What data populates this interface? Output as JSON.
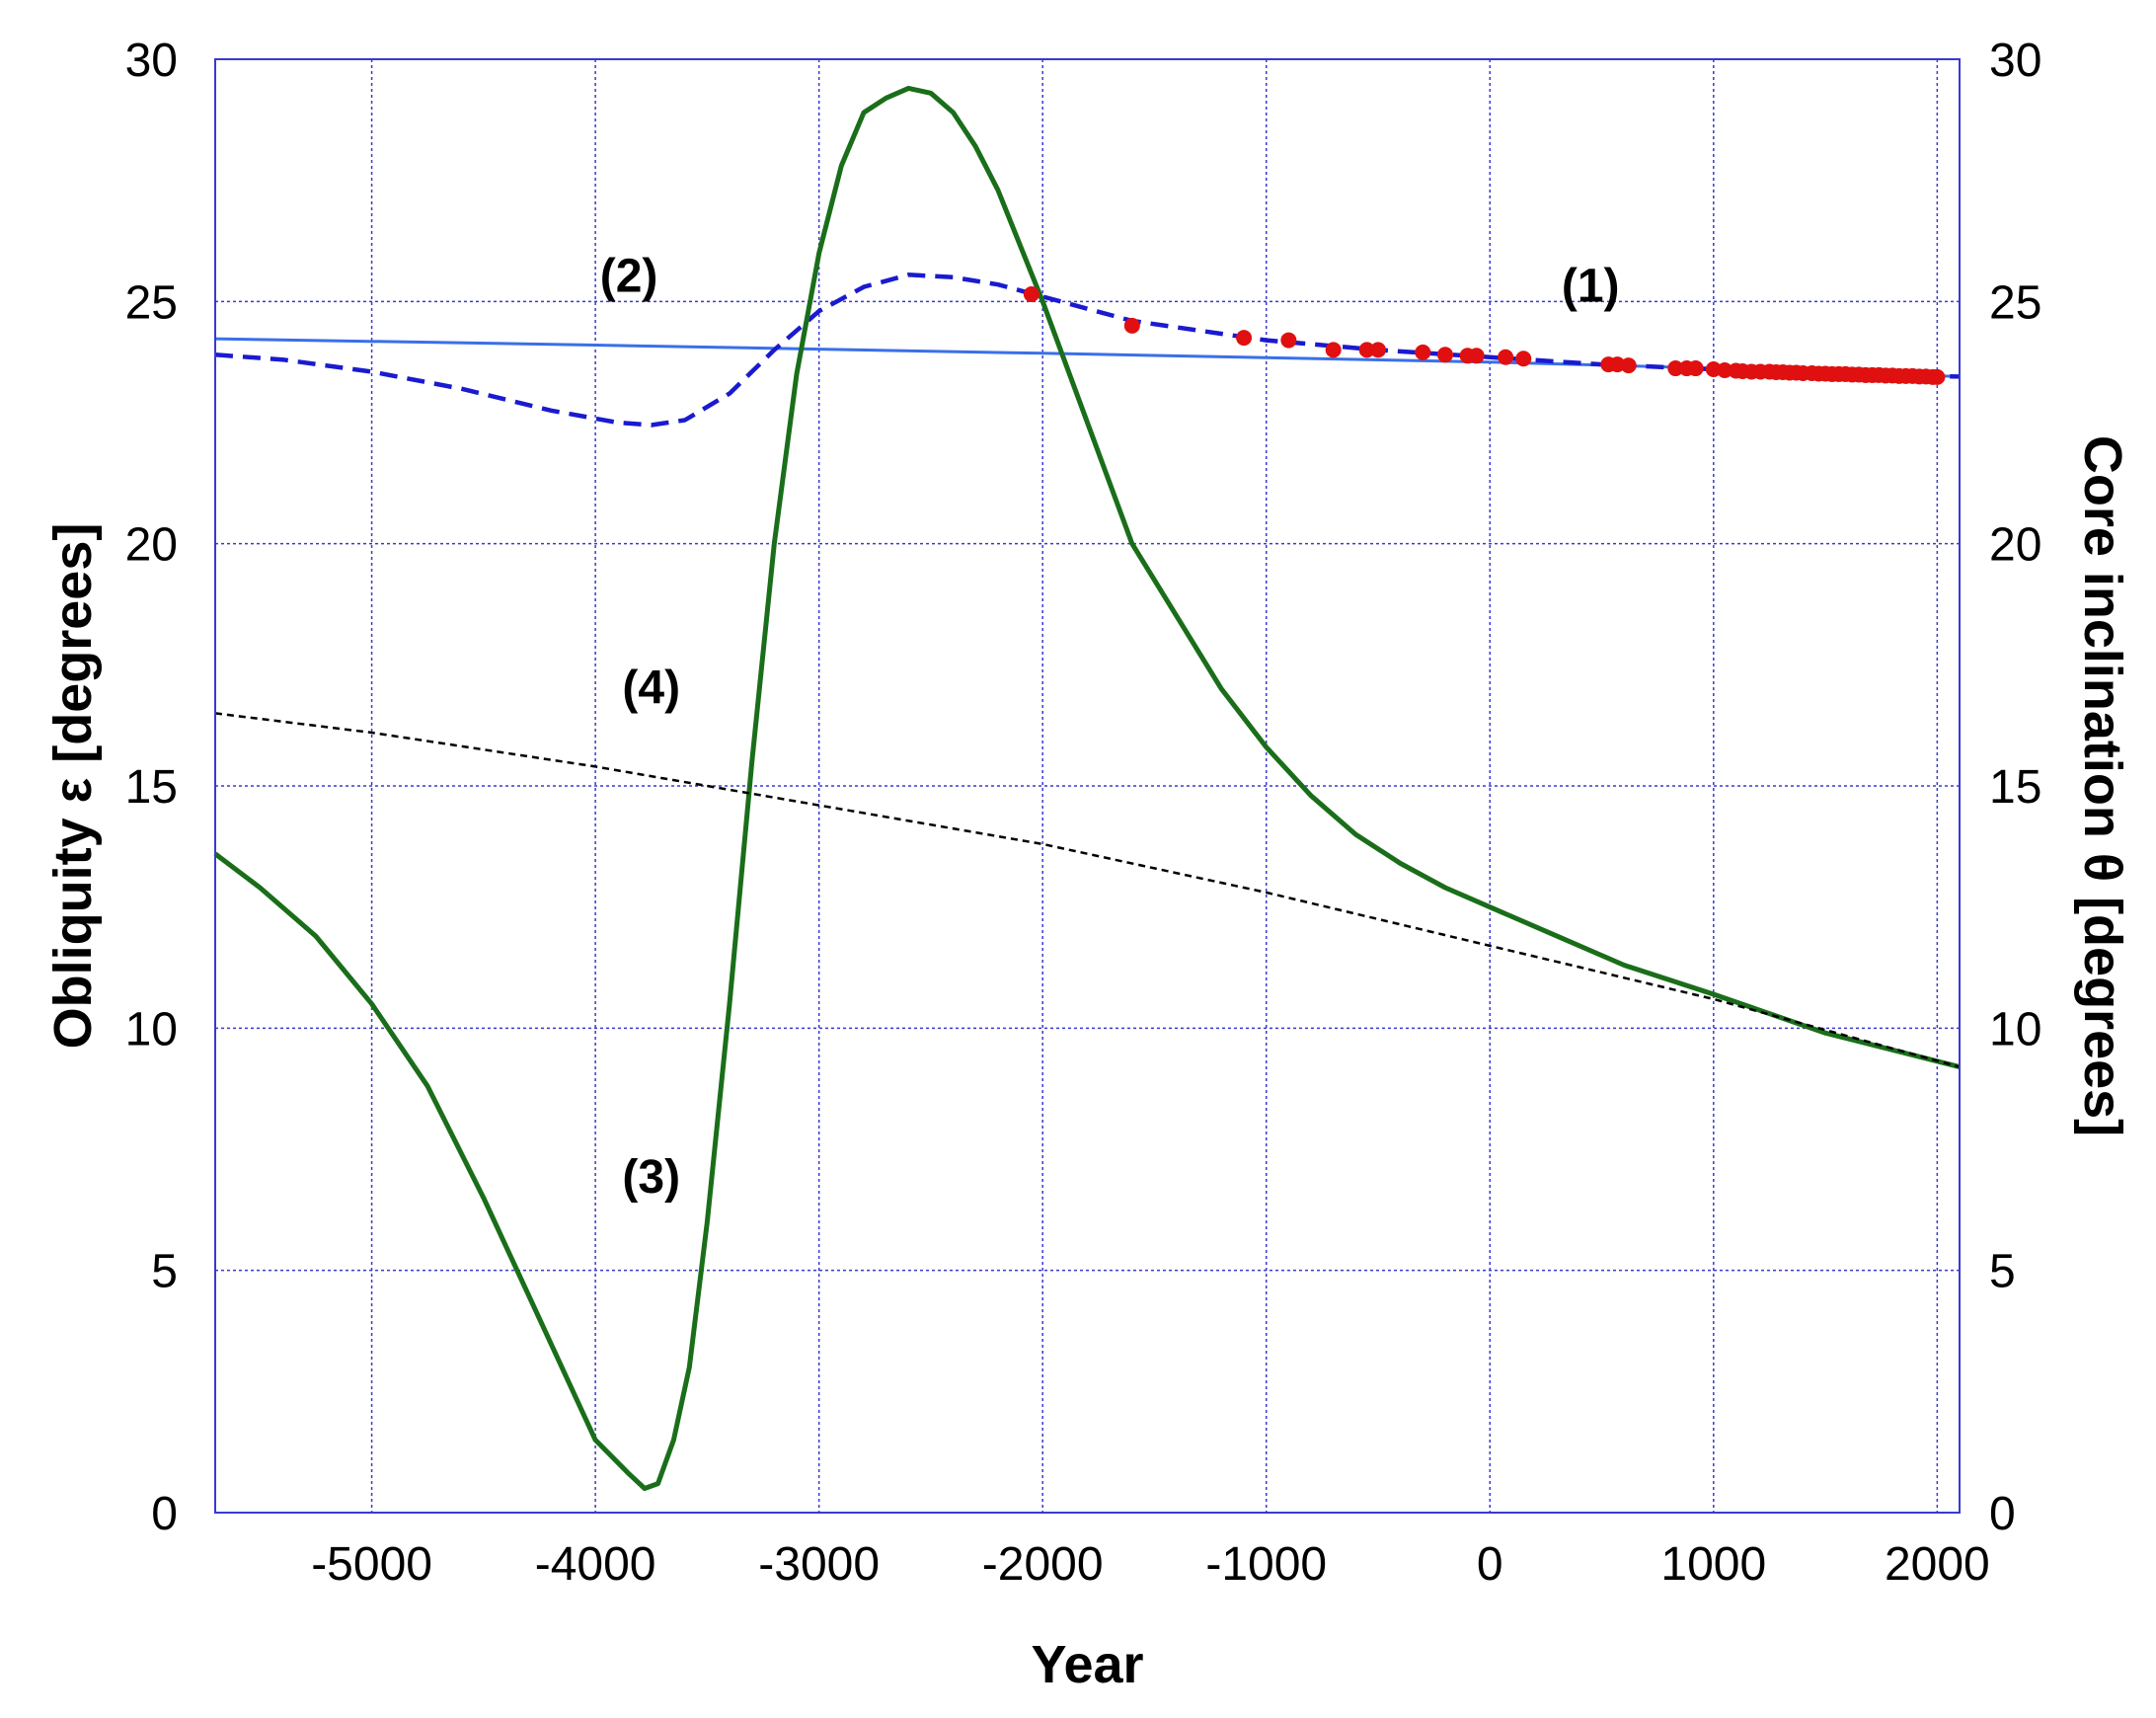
{
  "chart_data": {
    "type": "line",
    "title": "",
    "xlabel": "Year",
    "ylabel": "Obliquity ε [degrees]",
    "y2label": "Core inclination θ [degrees]",
    "xlim": [
      -5700,
      2100
    ],
    "ylim": [
      0,
      30
    ],
    "y2lim": [
      0,
      30
    ],
    "grid": true,
    "legend": "none",
    "x_ticks": [
      -5000,
      -4000,
      -3000,
      -2000,
      -1000,
      0,
      1000,
      2000
    ],
    "y_ticks": [
      0,
      5,
      10,
      15,
      20,
      25,
      30
    ],
    "y2_ticks": [
      0,
      5,
      10,
      15,
      20,
      25,
      30
    ],
    "colors": {
      "obliquity_solid": "#3a6fe8",
      "obliquity_dashed": "#1a1ad0",
      "core_inclination": "#1a6e1a",
      "trend_dotted": "#000000",
      "observations": "#e01010",
      "grid": "#3a3acf"
    },
    "annotations": [
      {
        "text": "(1)",
        "x": 450,
        "y": 25.0
      },
      {
        "text": "(2)",
        "x": -3850,
        "y": 25.2
      },
      {
        "text": "(3)",
        "x": -3750,
        "y": 6.6
      },
      {
        "text": "(4)",
        "x": -3750,
        "y": 16.7
      }
    ],
    "series": [
      {
        "label_ref": "(1)",
        "style": "solid",
        "axis": "left",
        "x": [
          -5700,
          -4000,
          -2000,
          0,
          1000,
          2100
        ],
        "y": [
          24.23,
          24.1,
          23.93,
          23.75,
          23.62,
          23.45
        ]
      },
      {
        "label_ref": "(2)",
        "style": "dashed",
        "axis": "left",
        "x": [
          -5700,
          -5400,
          -5000,
          -4600,
          -4200,
          -3900,
          -3750,
          -3600,
          -3400,
          -3200,
          -3000,
          -2800,
          -2600,
          -2400,
          -2200,
          -2000,
          -1600,
          -1000,
          -500,
          0,
          500,
          1000,
          1500,
          2100
        ],
        "y": [
          23.9,
          23.8,
          23.55,
          23.2,
          22.75,
          22.5,
          22.45,
          22.55,
          23.1,
          24.0,
          24.8,
          25.3,
          25.55,
          25.5,
          25.35,
          25.1,
          24.6,
          24.2,
          24.0,
          23.85,
          23.7,
          23.6,
          23.5,
          23.45
        ]
      },
      {
        "label_ref": "(3)",
        "style": "solid",
        "axis": "right",
        "x": [
          -5700,
          -5500,
          -5250,
          -5000,
          -4750,
          -4500,
          -4250,
          -4000,
          -3850,
          -3780,
          -3720,
          -3650,
          -3580,
          -3500,
          -3400,
          -3300,
          -3200,
          -3100,
          -3000,
          -2900,
          -2800,
          -2700,
          -2600,
          -2500,
          -2400,
          -2300,
          -2200,
          -2000,
          -1800,
          -1600,
          -1400,
          -1200,
          -1000,
          -800,
          -600,
          -400,
          -200,
          0,
          300,
          600,
          1000,
          1500,
          2100
        ],
        "y": [
          13.6,
          12.9,
          11.9,
          10.5,
          8.8,
          6.5,
          4.0,
          1.5,
          0.8,
          0.5,
          0.6,
          1.5,
          3.0,
          6.0,
          10.5,
          15.5,
          20.0,
          23.5,
          26.0,
          27.8,
          28.9,
          29.2,
          29.4,
          29.3,
          28.9,
          28.2,
          27.3,
          25.0,
          22.5,
          20.0,
          18.5,
          17.0,
          15.8,
          14.8,
          14.0,
          13.4,
          12.9,
          12.5,
          11.9,
          11.3,
          10.7,
          9.9,
          9.2
        ]
      },
      {
        "label_ref": "(4)",
        "style": "dotted",
        "axis": "right",
        "x": [
          -5700,
          -5000,
          -4000,
          -3000,
          -2000,
          -1000,
          0,
          1000,
          2100
        ],
        "y": [
          16.5,
          16.1,
          15.4,
          14.6,
          13.8,
          12.8,
          11.7,
          10.6,
          9.2
        ]
      }
    ],
    "observations": {
      "label_ref": "observed obliquity",
      "x": [
        -2050,
        -1600,
        -1100,
        -900,
        -700,
        -550,
        -500,
        -300,
        -200,
        -100,
        -60,
        70,
        150,
        530,
        570,
        620,
        830,
        880,
        920,
        1000,
        1050,
        1100,
        1130,
        1170,
        1210,
        1250,
        1280,
        1310,
        1340,
        1370,
        1400,
        1440,
        1470,
        1500,
        1530,
        1560,
        1590,
        1620,
        1650,
        1680,
        1710,
        1740,
        1770,
        1800,
        1830,
        1860,
        1890,
        1920,
        1950,
        1980,
        2000
      ],
      "y": [
        25.15,
        24.5,
        24.25,
        24.2,
        24.0,
        24.0,
        24.0,
        23.95,
        23.9,
        23.88,
        23.88,
        23.85,
        23.82,
        23.7,
        23.7,
        23.68,
        23.62,
        23.62,
        23.62,
        23.6,
        23.58,
        23.57,
        23.56,
        23.55,
        23.55,
        23.55,
        23.54,
        23.54,
        23.53,
        23.53,
        23.52,
        23.52,
        23.51,
        23.51,
        23.5,
        23.5,
        23.5,
        23.49,
        23.49,
        23.48,
        23.48,
        23.48,
        23.47,
        23.47,
        23.46,
        23.46,
        23.46,
        23.45,
        23.45,
        23.44,
        23.44
      ]
    }
  }
}
